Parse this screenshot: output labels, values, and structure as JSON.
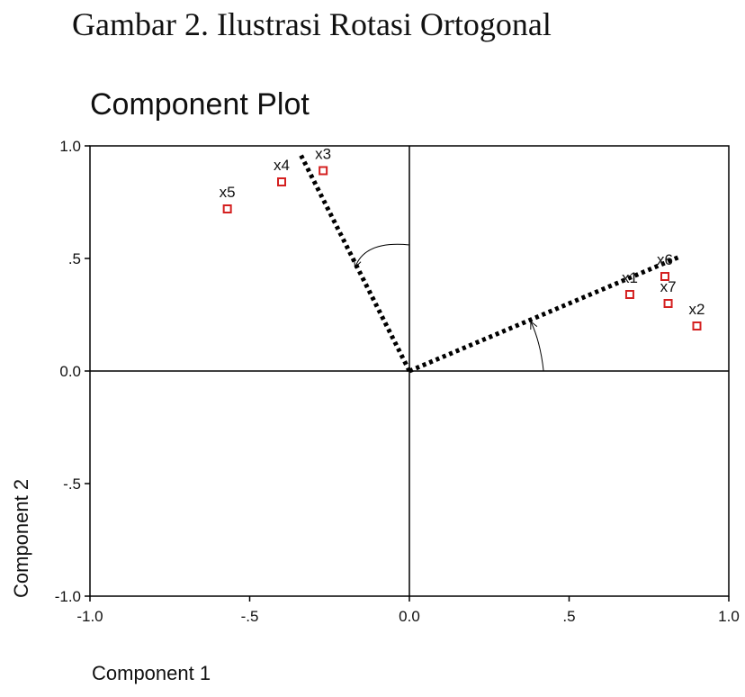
{
  "figure": {
    "caption": "Gambar 2.  Ilustrasi Rotasi Ortogonal"
  },
  "chart_data": {
    "type": "scatter",
    "title": "Component Plot",
    "xlabel": "Component 1",
    "ylabel": "Component 2",
    "xlim": [
      -1.0,
      1.0
    ],
    "ylim": [
      -1.0,
      1.0
    ],
    "x_ticks": [
      {
        "value": -1.0,
        "label": "-1.0"
      },
      {
        "value": -0.5,
        "label": "-.5"
      },
      {
        "value": 0.0,
        "label": "0.0"
      },
      {
        "value": 0.5,
        "label": ".5"
      },
      {
        "value": 1.0,
        "label": "1.0"
      }
    ],
    "y_ticks": [
      {
        "value": 1.0,
        "label": "1.0"
      },
      {
        "value": 0.5,
        "label": ".5"
      },
      {
        "value": 0.0,
        "label": "0.0"
      },
      {
        "value": -0.5,
        "label": "-.5"
      },
      {
        "value": -1.0,
        "label": "-1.0"
      }
    ],
    "points": [
      {
        "label": "x1",
        "x": 0.69,
        "y": 0.34
      },
      {
        "label": "x2",
        "x": 0.9,
        "y": 0.2
      },
      {
        "label": "x3",
        "x": -0.27,
        "y": 0.89
      },
      {
        "label": "x4",
        "x": -0.4,
        "y": 0.84
      },
      {
        "label": "x5",
        "x": -0.57,
        "y": 0.72
      },
      {
        "label": "x6",
        "x": 0.8,
        "y": 0.42
      },
      {
        "label": "x7",
        "x": 0.81,
        "y": 0.3
      }
    ],
    "rotated_axes": [
      {
        "from": [
          0,
          0
        ],
        "to": [
          -0.34,
          0.96
        ]
      },
      {
        "from": [
          0,
          0
        ],
        "to": [
          0.85,
          0.51
        ]
      }
    ],
    "rotation_arrows": [
      {
        "start": [
          0.0,
          0.56
        ],
        "control": [
          -0.14,
          0.58
        ],
        "end": [
          -0.17,
          0.46
        ]
      },
      {
        "start": [
          0.42,
          0.0
        ],
        "control": [
          0.41,
          0.13
        ],
        "end": [
          0.38,
          0.22
        ]
      }
    ],
    "reference_lines": {
      "x": 0,
      "y": 0
    },
    "grid": false,
    "marker": {
      "shape": "square",
      "color": "#d42020"
    }
  }
}
